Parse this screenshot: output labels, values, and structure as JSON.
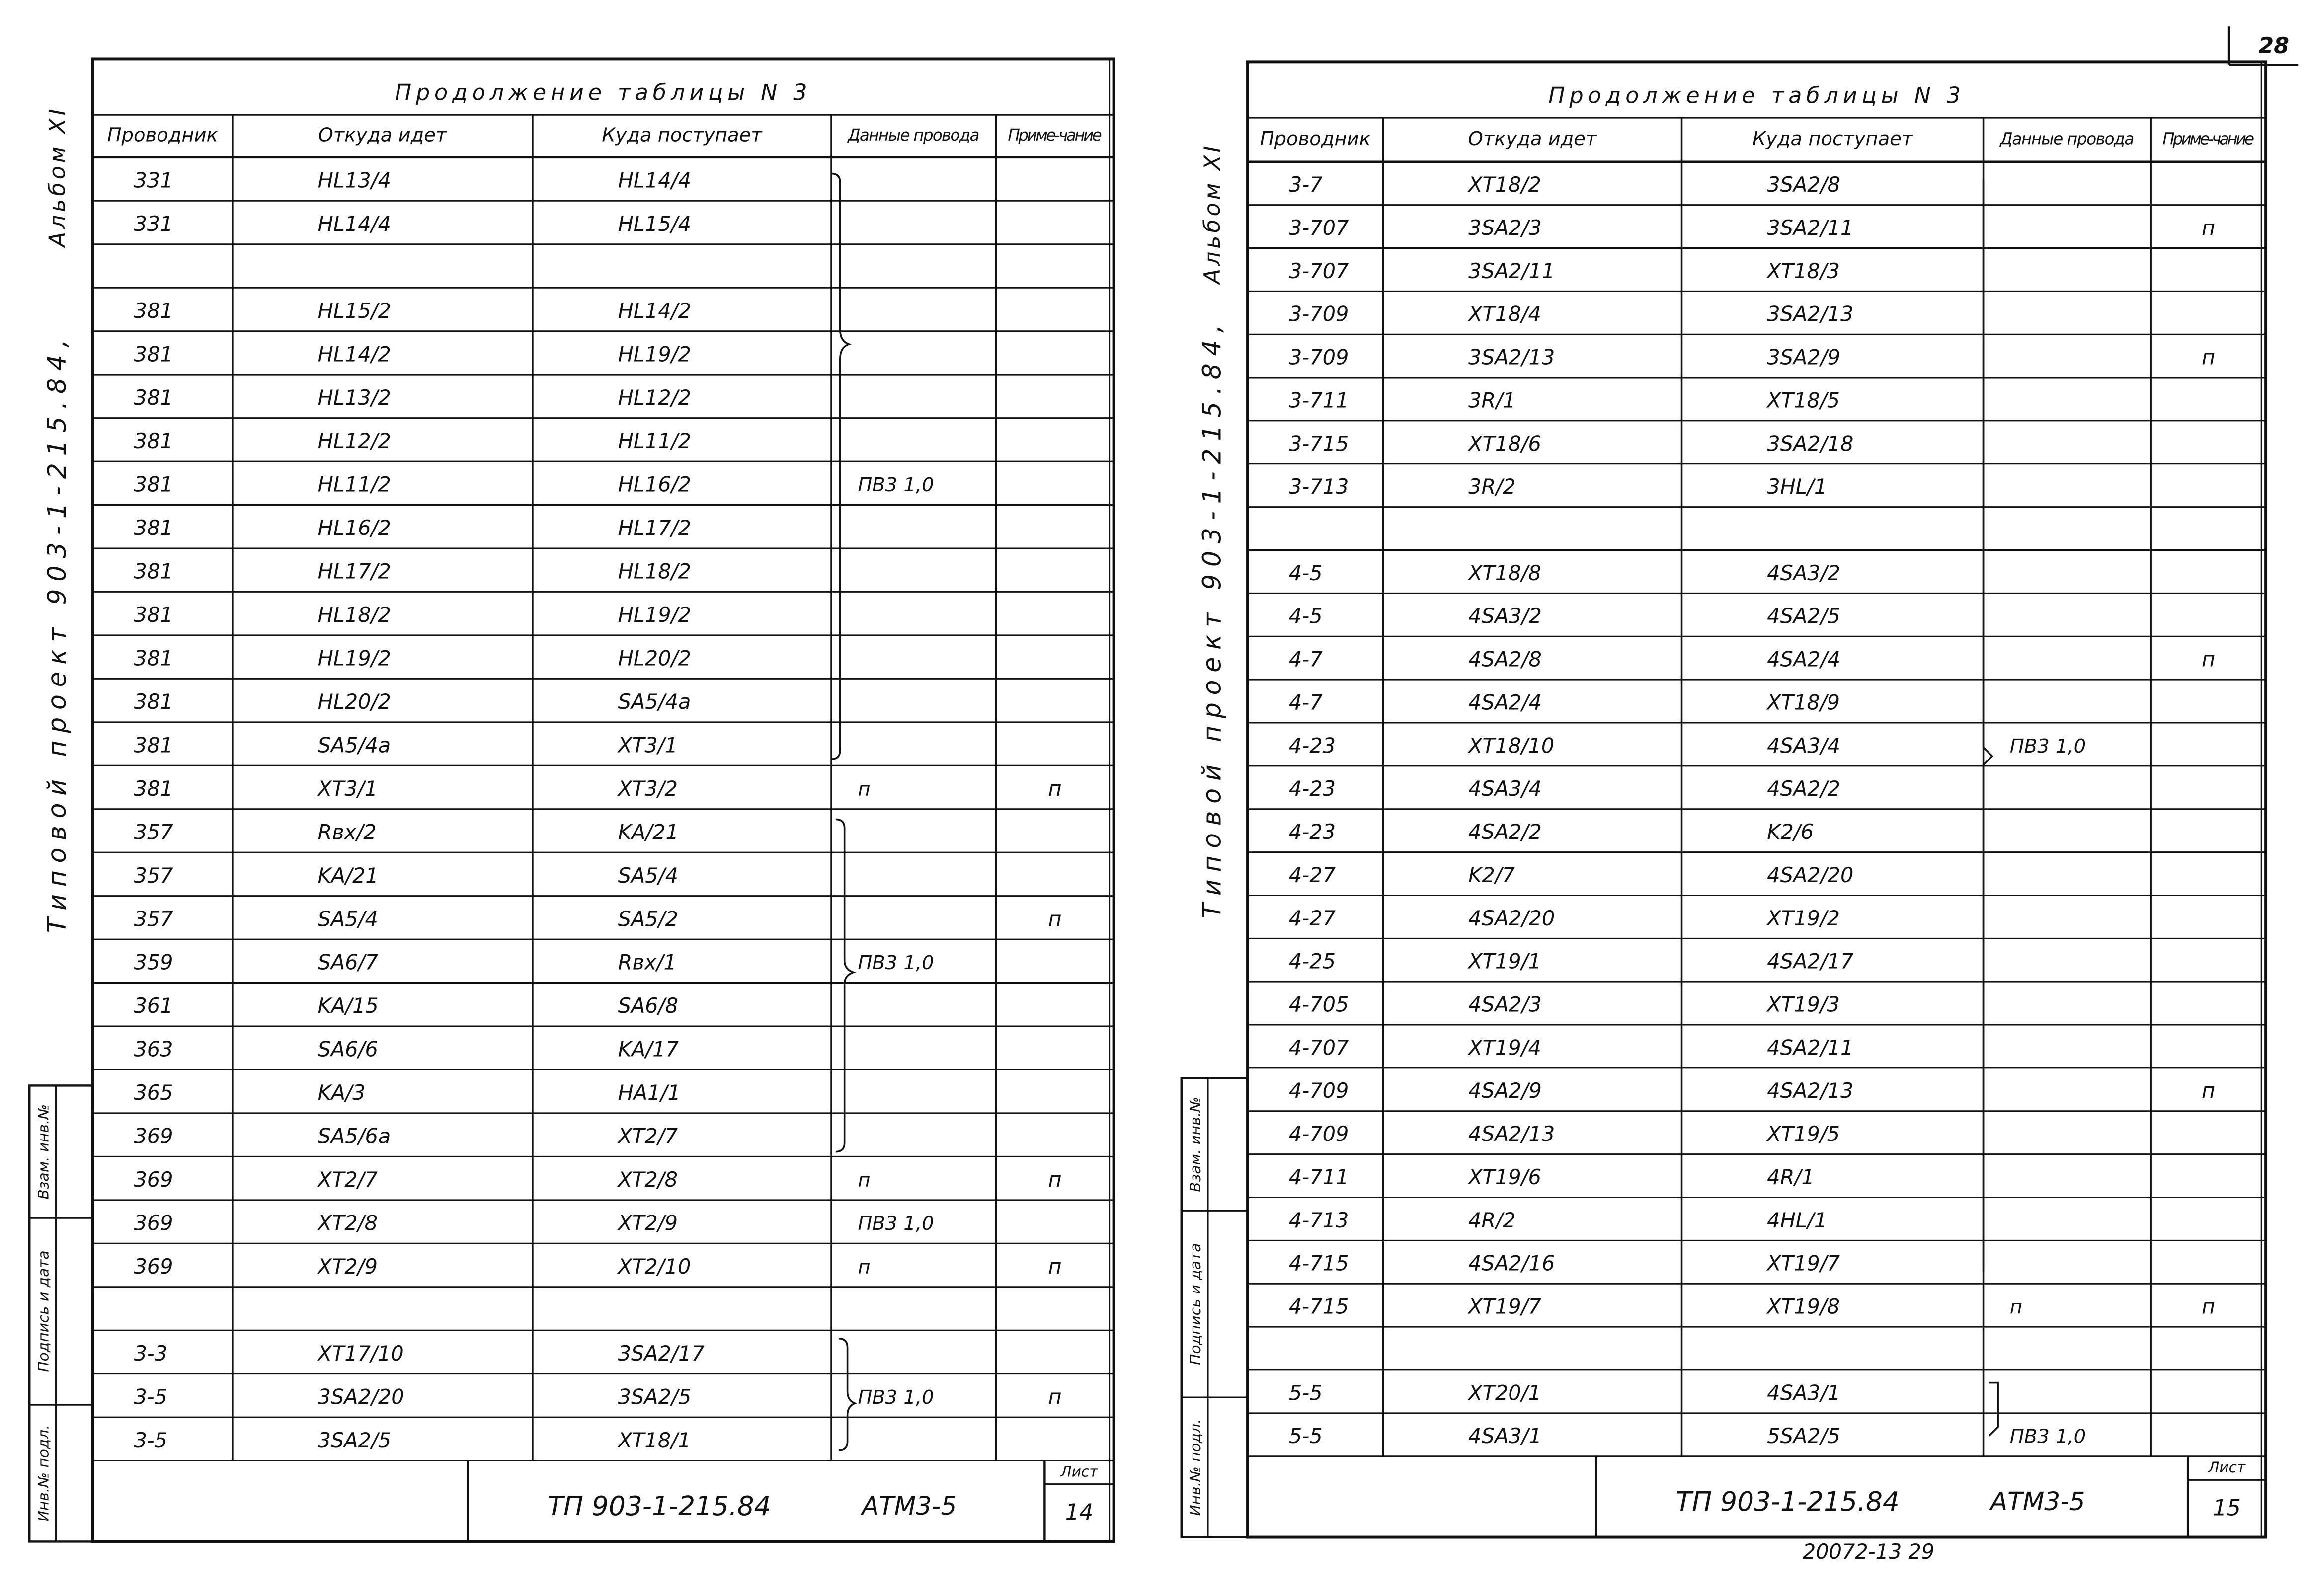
{
  "top_number": "28",
  "bottom_note": "20072-13 29",
  "pages": [
    {
      "album": "Альбом XI",
      "side_title": "Типовой проект 903-1-215.84,",
      "title": "Продолжение таблицы N 3",
      "columns": [
        "Проводник",
        "Откуда идет",
        "Куда поступает",
        "Данные провода",
        "Приме-чание"
      ],
      "rows": [
        [
          "331",
          "HL13/4",
          "HL14/4",
          null,
          null
        ],
        [
          "331",
          "HL14/4",
          "HL15/4",
          null,
          null
        ],
        null,
        [
          "381",
          "HL15/2",
          "HL14/2",
          null,
          null
        ],
        [
          "381",
          "HL14/2",
          "HL19/2",
          null,
          null
        ],
        [
          "381",
          "HL13/2",
          "HL12/2",
          null,
          null
        ],
        [
          "381",
          "HL12/2",
          "HL11/2",
          null,
          null
        ],
        [
          "381",
          "HL11/2",
          "HL16/2",
          "ПВ3 1,0",
          null
        ],
        [
          "381",
          "HL16/2",
          "HL17/2",
          null,
          null
        ],
        [
          "381",
          "HL17/2",
          "HL18/2",
          null,
          null
        ],
        [
          "381",
          "HL18/2",
          "HL19/2",
          null,
          null
        ],
        [
          "381",
          "HL19/2",
          "HL20/2",
          null,
          null
        ],
        [
          "381",
          "HL20/2",
          "SA5/4а",
          null,
          null
        ],
        [
          "381",
          "SA5/4а",
          "XT3/1",
          null,
          null
        ],
        [
          "381",
          "XT3/1",
          "XT3/2",
          "п",
          "п"
        ],
        [
          "357",
          "Rвх/2",
          "KA/21",
          null,
          null
        ],
        [
          "357",
          "KA/21",
          "SA5/4",
          null,
          null
        ],
        [
          "357",
          "SA5/4",
          "SA5/2",
          null,
          "п"
        ],
        [
          "359",
          "SA6/7",
          "Rвх/1",
          "ПВ3 1,0",
          null
        ],
        [
          "361",
          "KA/15",
          "SA6/8",
          null,
          null
        ],
        [
          "363",
          "SA6/6",
          "KA/17",
          null,
          null
        ],
        [
          "365",
          "KA/3",
          "HA1/1",
          null,
          null
        ],
        [
          "369",
          "SA5/6а",
          "XT2/7",
          null,
          null
        ],
        [
          "369",
          "XT2/7",
          "XT2/8",
          "п",
          "п"
        ],
        [
          "369",
          "XT2/8",
          "XT2/9",
          "ПВ3 1,0",
          null
        ],
        [
          "369",
          "XT2/9",
          "XT2/10",
          "п",
          "п"
        ],
        null,
        [
          "3-3",
          "XT17/10",
          "3SA2/17",
          null,
          null
        ],
        [
          "3-5",
          "3SA2/20",
          "3SA2/5",
          "ПВ3 1,0",
          "п"
        ],
        [
          "3-5",
          "3SA2/5",
          "XT18/1",
          null,
          null
        ]
      ],
      "stamp": {
        "code": "ТП 903-1-215.84",
        "doc": "АТМ3-5",
        "sheet_label": "Лист",
        "sheet": "14"
      },
      "side_stamp": [
        "Инв.№ подл.",
        "Подпись и дата",
        "Взам. инв.№"
      ]
    },
    {
      "album": "Альбом XI",
      "side_title": "Типовой проект 903-1-215.84,",
      "title": "Продолжение таблицы N 3",
      "columns": [
        "Проводник",
        "Откуда идет",
        "Куда поступает",
        "Данные провода",
        "Приме-чание"
      ],
      "rows": [
        [
          "3-7",
          "XT18/2",
          "3SA2/8",
          null,
          null
        ],
        [
          "3-707",
          "3SA2/3",
          "3SA2/11",
          null,
          "п"
        ],
        [
          "3-707",
          "3SA2/11",
          "XT18/3",
          null,
          null
        ],
        [
          "3-709",
          "XT18/4",
          "3SA2/13",
          null,
          null
        ],
        [
          "3-709",
          "3SA2/13",
          "3SA2/9",
          null,
          "п"
        ],
        [
          "3-711",
          "3R/1",
          "XT18/5",
          null,
          null
        ],
        [
          "3-715",
          "XT18/6",
          "3SA2/18",
          null,
          null
        ],
        [
          "3-713",
          "3R/2",
          "3HL/1",
          null,
          null
        ],
        null,
        [
          "4-5",
          "XT18/8",
          "4SA3/2",
          null,
          null
        ],
        [
          "4-5",
          "4SA3/2",
          "4SA2/5",
          null,
          null
        ],
        [
          "4-7",
          "4SA2/8",
          "4SA2/4",
          null,
          "п"
        ],
        [
          "4-7",
          "4SA2/4",
          "XT18/9",
          null,
          null
        ],
        [
          "4-23",
          "XT18/10",
          "4SA3/4",
          "ПВ3 1,0",
          null
        ],
        [
          "4-23",
          "4SA3/4",
          "4SA2/2",
          null,
          null
        ],
        [
          "4-23",
          "4SA2/2",
          "K2/6",
          null,
          null
        ],
        [
          "4-27",
          "K2/7",
          "4SA2/20",
          null,
          null
        ],
        [
          "4-27",
          "4SA2/20",
          "XT19/2",
          null,
          null
        ],
        [
          "4-25",
          "XT19/1",
          "4SA2/17",
          null,
          null
        ],
        [
          "4-705",
          "4SA2/3",
          "XT19/3",
          null,
          null
        ],
        [
          "4-707",
          "XT19/4",
          "4SA2/11",
          null,
          null
        ],
        [
          "4-709",
          "4SA2/9",
          "4SA2/13",
          null,
          "п"
        ],
        [
          "4-709",
          "4SA2/13",
          "XT19/5",
          null,
          null
        ],
        [
          "4-711",
          "XT19/6",
          "4R/1",
          null,
          null
        ],
        [
          "4-713",
          "4R/2",
          "4HL/1",
          null,
          null
        ],
        [
          "4-715",
          "4SA2/16",
          "XT19/7",
          null,
          null
        ],
        [
          "4-715",
          "XT19/7",
          "XT19/8",
          "п",
          "п"
        ],
        null,
        [
          "5-5",
          "XT20/1",
          "4SA3/1",
          null,
          null
        ],
        [
          "5-5",
          "4SA3/1",
          "5SA2/5",
          "ПВ3 1,0",
          null
        ]
      ],
      "stamp": {
        "code": "ТП 903-1-215.84",
        "doc": "АТМ3-5",
        "sheet_label": "Лист",
        "sheet": "15"
      },
      "side_stamp": [
        "Инв.№ подл.",
        "Подпись и дата",
        "Взам. инв.№"
      ]
    }
  ]
}
